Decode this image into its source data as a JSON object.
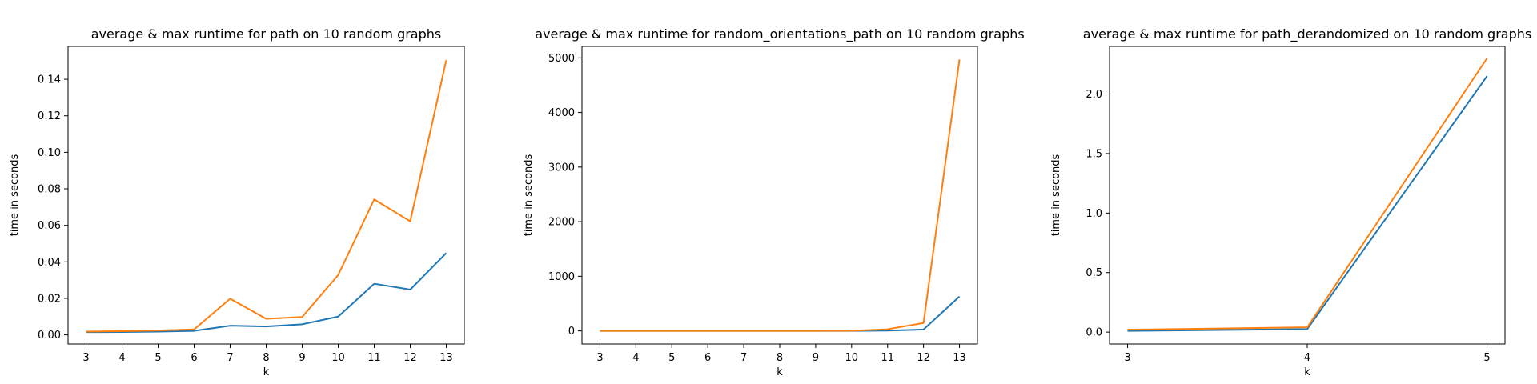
{
  "chart_data": [
    {
      "type": "line",
      "title": "average & max runtime for path on 10 random graphs",
      "xlabel": "k",
      "ylabel": "time in seconds",
      "x": [
        3,
        4,
        5,
        6,
        7,
        8,
        9,
        10,
        11,
        12,
        13
      ],
      "xticks": [
        "3",
        "4",
        "5",
        "6",
        "7",
        "8",
        "9",
        "10",
        "11",
        "12",
        "13"
      ],
      "yticks": [
        0,
        0.02,
        0.04,
        0.06,
        0.08,
        0.1,
        0.12,
        0.14
      ],
      "ytick_labels": [
        "0.00",
        "0.02",
        "0.04",
        "0.06",
        "0.08",
        "0.10",
        "0.12",
        "0.14"
      ],
      "xlim": [
        2.5,
        13.5
      ],
      "ylim": [
        -0.005,
        0.158
      ],
      "grid": false,
      "series": [
        {
          "color": "#1f77b4",
          "values": [
            0.0015,
            0.0016,
            0.0018,
            0.0022,
            0.005,
            0.0046,
            0.0058,
            0.01,
            0.028,
            0.0248,
            0.0448
          ]
        },
        {
          "color": "#ff7f0e",
          "values": [
            0.0018,
            0.002,
            0.0024,
            0.003,
            0.0198,
            0.0088,
            0.0098,
            0.0328,
            0.0742,
            0.0622,
            0.1505
          ]
        }
      ]
    },
    {
      "type": "line",
      "title": "average & max runtime for random_orientations_path on 10 random graphs",
      "xlabel": "k",
      "ylabel": "time in seconds",
      "x": [
        3,
        4,
        5,
        6,
        7,
        8,
        9,
        10,
        11,
        12,
        13
      ],
      "xticks": [
        "3",
        "4",
        "5",
        "6",
        "7",
        "8",
        "9",
        "10",
        "11",
        "12",
        "13"
      ],
      "yticks": [
        0,
        1000,
        2000,
        3000,
        4000,
        5000
      ],
      "ytick_labels": [
        "0",
        "1000",
        "2000",
        "3000",
        "4000",
        "5000"
      ],
      "xlim": [
        2.5,
        13.5
      ],
      "ylim": [
        -240,
        5210
      ],
      "grid": false,
      "series": [
        {
          "color": "#1f77b4",
          "values": [
            0,
            0,
            0,
            0,
            0,
            0,
            0,
            0,
            5,
            25,
            630
          ]
        },
        {
          "color": "#ff7f0e",
          "values": [
            0,
            0,
            0,
            0,
            0,
            0,
            0,
            1,
            30,
            145,
            4970
          ]
        }
      ]
    },
    {
      "type": "line",
      "title": "average & max runtime for path_derandomized on 10 random graphs",
      "xlabel": "k",
      "ylabel": "time in seconds",
      "x": [
        3,
        4,
        5
      ],
      "xticks": [
        "3",
        "4",
        "5"
      ],
      "yticks": [
        0,
        0.5,
        1.0,
        1.5,
        2.0
      ],
      "ytick_labels": [
        "0.0",
        "0.5",
        "1.0",
        "1.5",
        "2.0"
      ],
      "xlim": [
        2.9,
        5.1
      ],
      "ylim": [
        -0.1,
        2.4
      ],
      "grid": false,
      "series": [
        {
          "color": "#1f77b4",
          "values": [
            0.01,
            0.025,
            2.15
          ]
        },
        {
          "color": "#ff7f0e",
          "values": [
            0.02,
            0.04,
            2.3
          ]
        }
      ]
    }
  ]
}
